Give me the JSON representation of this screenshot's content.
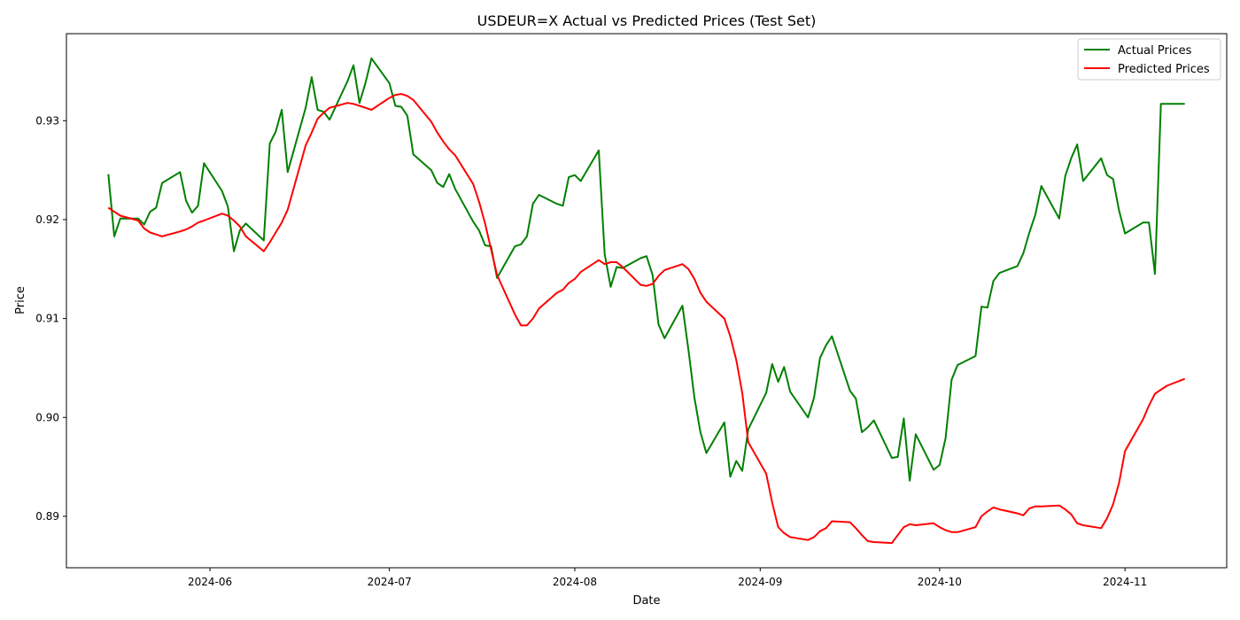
{
  "chart_data": {
    "type": "line",
    "title": "USDEUR=X Actual vs Predicted Prices (Test Set)",
    "xlabel": "Date",
    "ylabel": "Price",
    "xlim": [
      "2024-05-08",
      "2024-11-18"
    ],
    "ylim": [
      0.8848,
      0.9388
    ],
    "x_ticks": [
      "2024-06-01",
      "2024-07-01",
      "2024-08-01",
      "2024-09-01",
      "2024-10-01",
      "2024-11-01"
    ],
    "x_tick_labels": [
      "2024-06",
      "2024-07",
      "2024-08",
      "2024-09",
      "2024-10",
      "2024-11"
    ],
    "y_ticks": [
      0.89,
      0.9,
      0.91,
      0.92,
      0.93
    ],
    "y_tick_labels": [
      "0.89",
      "0.90",
      "0.91",
      "0.92",
      "0.93"
    ],
    "grid": false,
    "legend": "top-right",
    "series": [
      {
        "name": "Actual Prices",
        "color": "#008000",
        "points": [
          [
            "2024-05-15",
            0.9246
          ],
          [
            "2024-05-16",
            0.9183
          ],
          [
            "2024-05-17",
            0.9201
          ],
          [
            "2024-05-20",
            0.9201
          ],
          [
            "2024-05-21",
            0.9195
          ],
          [
            "2024-05-22",
            0.9208
          ],
          [
            "2024-05-23",
            0.9212
          ],
          [
            "2024-05-24",
            0.9237
          ],
          [
            "2024-05-27",
            0.9248
          ],
          [
            "2024-05-28",
            0.9219
          ],
          [
            "2024-05-29",
            0.9207
          ],
          [
            "2024-05-30",
            0.9214
          ],
          [
            "2024-05-31",
            0.9257
          ],
          [
            "2024-06-03",
            0.9229
          ],
          [
            "2024-06-04",
            0.9213
          ],
          [
            "2024-06-05",
            0.9168
          ],
          [
            "2024-06-06",
            0.9189
          ],
          [
            "2024-06-07",
            0.9196
          ],
          [
            "2024-06-10",
            0.9179
          ],
          [
            "2024-06-11",
            0.9277
          ],
          [
            "2024-06-12",
            0.9289
          ],
          [
            "2024-06-13",
            0.9311
          ],
          [
            "2024-06-14",
            0.9248
          ],
          [
            "2024-06-17",
            0.9313
          ],
          [
            "2024-06-18",
            0.9344
          ],
          [
            "2024-06-19",
            0.9311
          ],
          [
            "2024-06-20",
            0.9309
          ],
          [
            "2024-06-21",
            0.9301
          ],
          [
            "2024-06-24",
            0.934
          ],
          [
            "2024-06-25",
            0.9356
          ],
          [
            "2024-06-26",
            0.9318
          ],
          [
            "2024-06-27",
            0.9338
          ],
          [
            "2024-06-28",
            0.9363
          ],
          [
            "2024-07-01",
            0.9338
          ],
          [
            "2024-07-02",
            0.9315
          ],
          [
            "2024-07-03",
            0.9314
          ],
          [
            "2024-07-04",
            0.9305
          ],
          [
            "2024-07-05",
            0.9266
          ],
          [
            "2024-07-08",
            0.925
          ],
          [
            "2024-07-09",
            0.9237
          ],
          [
            "2024-07-10",
            0.9233
          ],
          [
            "2024-07-11",
            0.9246
          ],
          [
            "2024-07-12",
            0.9231
          ],
          [
            "2024-07-15",
            0.9198
          ],
          [
            "2024-07-16",
            0.9189
          ],
          [
            "2024-07-17",
            0.9174
          ],
          [
            "2024-07-18",
            0.9173
          ],
          [
            "2024-07-19",
            0.9141
          ],
          [
            "2024-07-22",
            0.9173
          ],
          [
            "2024-07-23",
            0.9175
          ],
          [
            "2024-07-24",
            0.9183
          ],
          [
            "2024-07-25",
            0.9216
          ],
          [
            "2024-07-26",
            0.9225
          ],
          [
            "2024-07-29",
            0.9216
          ],
          [
            "2024-07-30",
            0.9214
          ],
          [
            "2024-07-31",
            0.9243
          ],
          [
            "2024-08-01",
            0.9245
          ],
          [
            "2024-08-02",
            0.9239
          ],
          [
            "2024-08-05",
            0.927
          ],
          [
            "2024-08-06",
            0.9165
          ],
          [
            "2024-08-07",
            0.9132
          ],
          [
            "2024-08-08",
            0.9152
          ],
          [
            "2024-08-09",
            0.9151
          ],
          [
            "2024-08-12",
            0.9161
          ],
          [
            "2024-08-13",
            0.9163
          ],
          [
            "2024-08-14",
            0.9144
          ],
          [
            "2024-08-15",
            0.9094
          ],
          [
            "2024-08-16",
            0.908
          ],
          [
            "2024-08-19",
            0.9113
          ],
          [
            "2024-08-20",
            0.9068
          ],
          [
            "2024-08-21",
            0.902
          ],
          [
            "2024-08-22",
            0.8985
          ],
          [
            "2024-08-23",
            0.8964
          ],
          [
            "2024-08-26",
            0.8995
          ],
          [
            "2024-08-27",
            0.894
          ],
          [
            "2024-08-28",
            0.8956
          ],
          [
            "2024-08-29",
            0.8946
          ],
          [
            "2024-08-30",
            0.8988
          ],
          [
            "2024-09-02",
            0.9025
          ],
          [
            "2024-09-03",
            0.9054
          ],
          [
            "2024-09-04",
            0.9036
          ],
          [
            "2024-09-05",
            0.9051
          ],
          [
            "2024-09-06",
            0.9026
          ],
          [
            "2024-09-09",
            0.9
          ],
          [
            "2024-09-10",
            0.902
          ],
          [
            "2024-09-11",
            0.906
          ],
          [
            "2024-09-12",
            0.9073
          ],
          [
            "2024-09-13",
            0.9082
          ],
          [
            "2024-09-16",
            0.9027
          ],
          [
            "2024-09-17",
            0.9019
          ],
          [
            "2024-09-18",
            0.8985
          ],
          [
            "2024-09-19",
            0.899
          ],
          [
            "2024-09-20",
            0.8997
          ],
          [
            "2024-09-23",
            0.8959
          ],
          [
            "2024-09-24",
            0.896
          ],
          [
            "2024-09-25",
            0.8999
          ],
          [
            "2024-09-26",
            0.8936
          ],
          [
            "2024-09-27",
            0.8983
          ],
          [
            "2024-09-30",
            0.8947
          ],
          [
            "2024-10-01",
            0.8952
          ],
          [
            "2024-10-02",
            0.8979
          ],
          [
            "2024-10-03",
            0.9038
          ],
          [
            "2024-10-04",
            0.9053
          ],
          [
            "2024-10-07",
            0.9062
          ],
          [
            "2024-10-08",
            0.9112
          ],
          [
            "2024-10-09",
            0.9111
          ],
          [
            "2024-10-10",
            0.9138
          ],
          [
            "2024-10-11",
            0.9146
          ],
          [
            "2024-10-14",
            0.9153
          ],
          [
            "2024-10-15",
            0.9166
          ],
          [
            "2024-10-16",
            0.9187
          ],
          [
            "2024-10-17",
            0.9205
          ],
          [
            "2024-10-18",
            0.9234
          ],
          [
            "2024-10-21",
            0.9201
          ],
          [
            "2024-10-22",
            0.9244
          ],
          [
            "2024-10-23",
            0.9262
          ],
          [
            "2024-10-24",
            0.9276
          ],
          [
            "2024-10-25",
            0.9239
          ],
          [
            "2024-10-28",
            0.9262
          ],
          [
            "2024-10-29",
            0.9245
          ],
          [
            "2024-10-30",
            0.9241
          ],
          [
            "2024-10-31",
            0.9209
          ],
          [
            "2024-11-01",
            0.9186
          ],
          [
            "2024-11-04",
            0.9197
          ],
          [
            "2024-11-05",
            0.9197
          ],
          [
            "2024-11-06",
            0.9145
          ],
          [
            "2024-11-07",
            0.9317
          ],
          [
            "2024-11-08",
            0.9317
          ],
          [
            "2024-11-11",
            0.9317
          ]
        ]
      },
      {
        "name": "Predicted Prices",
        "color": "#ff0000",
        "points": [
          [
            "2024-05-15",
            0.9212
          ],
          [
            "2024-05-16",
            0.9208
          ],
          [
            "2024-05-17",
            0.9204
          ],
          [
            "2024-05-20",
            0.9199
          ],
          [
            "2024-05-21",
            0.9191
          ],
          [
            "2024-05-22",
            0.9187
          ],
          [
            "2024-05-23",
            0.9185
          ],
          [
            "2024-05-24",
            0.9183
          ],
          [
            "2024-05-27",
            0.9188
          ],
          [
            "2024-05-28",
            0.919
          ],
          [
            "2024-05-29",
            0.9193
          ],
          [
            "2024-05-30",
            0.9197
          ],
          [
            "2024-05-31",
            0.9199
          ],
          [
            "2024-06-03",
            0.9206
          ],
          [
            "2024-06-04",
            0.9204
          ],
          [
            "2024-06-05",
            0.9199
          ],
          [
            "2024-06-06",
            0.9193
          ],
          [
            "2024-06-07",
            0.9183
          ],
          [
            "2024-06-10",
            0.9168
          ],
          [
            "2024-06-11",
            0.9177
          ],
          [
            "2024-06-12",
            0.9187
          ],
          [
            "2024-06-13",
            0.9197
          ],
          [
            "2024-06-14",
            0.921
          ],
          [
            "2024-06-17",
            0.9275
          ],
          [
            "2024-06-18",
            0.9288
          ],
          [
            "2024-06-19",
            0.9302
          ],
          [
            "2024-06-20",
            0.9308
          ],
          [
            "2024-06-21",
            0.9313
          ],
          [
            "2024-06-24",
            0.9318
          ],
          [
            "2024-06-25",
            0.9317
          ],
          [
            "2024-06-26",
            0.9315
          ],
          [
            "2024-06-27",
            0.9313
          ],
          [
            "2024-06-28",
            0.9311
          ],
          [
            "2024-07-01",
            0.9323
          ],
          [
            "2024-07-02",
            0.9326
          ],
          [
            "2024-07-03",
            0.9327
          ],
          [
            "2024-07-04",
            0.9325
          ],
          [
            "2024-07-05",
            0.9321
          ],
          [
            "2024-07-08",
            0.9299
          ],
          [
            "2024-07-09",
            0.9288
          ],
          [
            "2024-07-10",
            0.9279
          ],
          [
            "2024-07-11",
            0.9271
          ],
          [
            "2024-07-12",
            0.9265
          ],
          [
            "2024-07-15",
            0.9236
          ],
          [
            "2024-07-16",
            0.9218
          ],
          [
            "2024-07-17",
            0.9196
          ],
          [
            "2024-07-18",
            0.917
          ],
          [
            "2024-07-19",
            0.9144
          ],
          [
            "2024-07-22",
            0.9104
          ],
          [
            "2024-07-23",
            0.9093
          ],
          [
            "2024-07-24",
            0.9093
          ],
          [
            "2024-07-25",
            0.91
          ],
          [
            "2024-07-26",
            0.911
          ],
          [
            "2024-07-29",
            0.9126
          ],
          [
            "2024-07-30",
            0.9129
          ],
          [
            "2024-07-31",
            0.9136
          ],
          [
            "2024-08-01",
            0.914
          ],
          [
            "2024-08-02",
            0.9147
          ],
          [
            "2024-08-05",
            0.9159
          ],
          [
            "2024-08-06",
            0.9155
          ],
          [
            "2024-08-07",
            0.9157
          ],
          [
            "2024-08-08",
            0.9157
          ],
          [
            "2024-08-09",
            0.9152
          ],
          [
            "2024-08-12",
            0.9134
          ],
          [
            "2024-08-13",
            0.9133
          ],
          [
            "2024-08-14",
            0.9135
          ],
          [
            "2024-08-15",
            0.9143
          ],
          [
            "2024-08-16",
            0.9149
          ],
          [
            "2024-08-19",
            0.9155
          ],
          [
            "2024-08-20",
            0.915
          ],
          [
            "2024-08-21",
            0.914
          ],
          [
            "2024-08-22",
            0.9126
          ],
          [
            "2024-08-23",
            0.9117
          ],
          [
            "2024-08-26",
            0.91
          ],
          [
            "2024-08-27",
            0.9082
          ],
          [
            "2024-08-28",
            0.9058
          ],
          [
            "2024-08-29",
            0.9025
          ],
          [
            "2024-08-30",
            0.8975
          ],
          [
            "2024-09-02",
            0.8943
          ],
          [
            "2024-09-03",
            0.8914
          ],
          [
            "2024-09-04",
            0.8889
          ],
          [
            "2024-09-05",
            0.8883
          ],
          [
            "2024-09-06",
            0.8879
          ],
          [
            "2024-09-09",
            0.8876
          ],
          [
            "2024-09-10",
            0.8879
          ],
          [
            "2024-09-11",
            0.8885
          ],
          [
            "2024-09-12",
            0.8888
          ],
          [
            "2024-09-13",
            0.8895
          ],
          [
            "2024-09-16",
            0.8894
          ],
          [
            "2024-09-17",
            0.8888
          ],
          [
            "2024-09-18",
            0.8881
          ],
          [
            "2024-09-19",
            0.8875
          ],
          [
            "2024-09-20",
            0.8874
          ],
          [
            "2024-09-23",
            0.8873
          ],
          [
            "2024-09-24",
            0.8881
          ],
          [
            "2024-09-25",
            0.8889
          ],
          [
            "2024-09-26",
            0.8892
          ],
          [
            "2024-09-27",
            0.8891
          ],
          [
            "2024-09-30",
            0.8893
          ],
          [
            "2024-10-01",
            0.8889
          ],
          [
            "2024-10-02",
            0.8886
          ],
          [
            "2024-10-03",
            0.8884
          ],
          [
            "2024-10-04",
            0.8884
          ],
          [
            "2024-10-07",
            0.8889
          ],
          [
            "2024-10-08",
            0.89
          ],
          [
            "2024-10-09",
            0.8905
          ],
          [
            "2024-10-10",
            0.8909
          ],
          [
            "2024-10-11",
            0.8907
          ],
          [
            "2024-10-14",
            0.8903
          ],
          [
            "2024-10-15",
            0.8901
          ],
          [
            "2024-10-16",
            0.8908
          ],
          [
            "2024-10-17",
            0.891
          ],
          [
            "2024-10-18",
            0.891
          ],
          [
            "2024-10-21",
            0.8911
          ],
          [
            "2024-10-22",
            0.8907
          ],
          [
            "2024-10-23",
            0.8902
          ],
          [
            "2024-10-24",
            0.8893
          ],
          [
            "2024-10-25",
            0.8891
          ],
          [
            "2024-10-28",
            0.8888
          ],
          [
            "2024-10-29",
            0.8898
          ],
          [
            "2024-10-30",
            0.8912
          ],
          [
            "2024-10-31",
            0.8934
          ],
          [
            "2024-11-01",
            0.8966
          ],
          [
            "2024-11-04",
            0.8998
          ],
          [
            "2024-11-05",
            0.9012
          ],
          [
            "2024-11-06",
            0.9024
          ],
          [
            "2024-11-07",
            0.9028
          ],
          [
            "2024-11-08",
            0.9032
          ],
          [
            "2024-11-11",
            0.9039
          ]
        ]
      }
    ]
  }
}
